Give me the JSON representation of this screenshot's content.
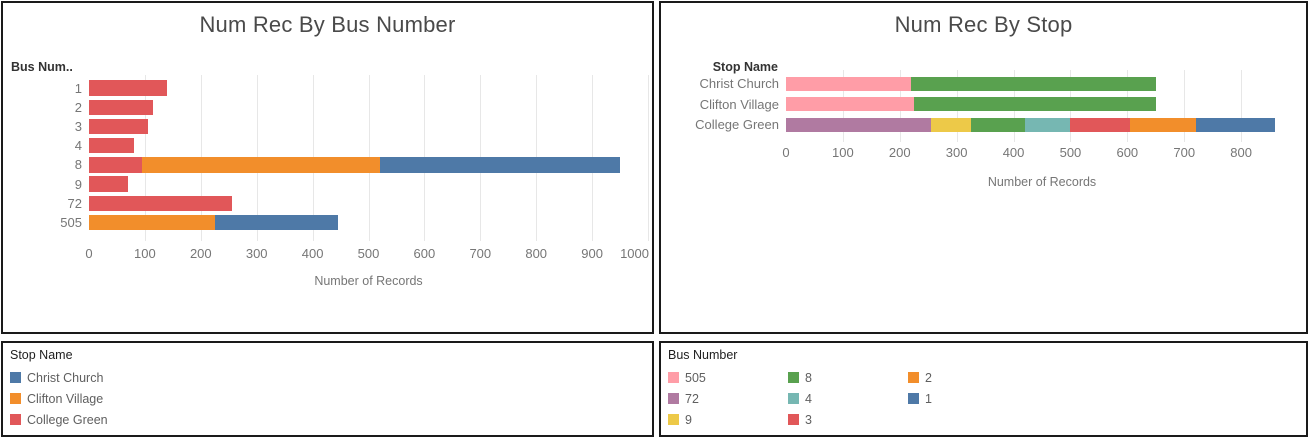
{
  "chart_data": [
    {
      "type": "bar",
      "orientation": "horizontal",
      "stacked": true,
      "title": "Num Rec By Bus Number",
      "row_header": "Bus Num..",
      "xlabel": "Number of Records",
      "xlim": [
        0,
        1000
      ],
      "xticks": [
        0,
        100,
        200,
        300,
        400,
        500,
        600,
        700,
        800,
        900,
        1000
      ],
      "grid": true,
      "legend_position": "separate-panel",
      "categories": [
        "1",
        "2",
        "3",
        "4",
        "8",
        "9",
        "72",
        "505"
      ],
      "series": [
        {
          "name": "College Green",
          "color": "#e15759",
          "values": [
            140,
            115,
            105,
            80,
            95,
            70,
            255,
            0
          ]
        },
        {
          "name": "Clifton Village",
          "color": "#f28e2b",
          "values": [
            0,
            0,
            0,
            0,
            425,
            0,
            0,
            225
          ]
        },
        {
          "name": "Christ Church",
          "color": "#4e79a7",
          "values": [
            0,
            0,
            0,
            0,
            430,
            0,
            0,
            220
          ]
        }
      ],
      "totals": [
        140,
        115,
        105,
        80,
        950,
        70,
        255,
        445
      ]
    },
    {
      "type": "bar",
      "orientation": "horizontal",
      "stacked": true,
      "title": "Num Rec By Stop",
      "row_header": "Stop Name",
      "xlabel": "Number of Records",
      "xlim": [
        0,
        900
      ],
      "xticks": [
        0,
        100,
        200,
        300,
        400,
        500,
        600,
        700,
        800
      ],
      "grid": true,
      "legend_position": "separate-panel",
      "categories": [
        "Christ Church",
        "Clifton Village",
        "College Green"
      ],
      "series": [
        {
          "name": "505",
          "color": "#ff9da7",
          "values": [
            220,
            225,
            0
          ]
        },
        {
          "name": "72",
          "color": "#b07aa1",
          "values": [
            0,
            0,
            255
          ]
        },
        {
          "name": "9",
          "color": "#edc948",
          "values": [
            0,
            0,
            70
          ]
        },
        {
          "name": "8",
          "color": "#59a14f",
          "values": [
            430,
            425,
            95
          ]
        },
        {
          "name": "4",
          "color": "#76b7b2",
          "values": [
            0,
            0,
            80
          ]
        },
        {
          "name": "3",
          "color": "#e15759",
          "values": [
            0,
            0,
            105
          ]
        },
        {
          "name": "2",
          "color": "#f28e2b",
          "values": [
            0,
            0,
            115
          ]
        },
        {
          "name": "1",
          "color": "#4e79a7",
          "values": [
            0,
            0,
            140
          ]
        }
      ],
      "totals": [
        650,
        650,
        860
      ]
    }
  ],
  "legends": [
    {
      "title": "Stop Name",
      "columns": 1,
      "items": [
        {
          "label": "Christ Church",
          "color": "#4e79a7"
        },
        {
          "label": "Clifton Village",
          "color": "#f28e2b"
        },
        {
          "label": "College Green",
          "color": "#e15759"
        }
      ]
    },
    {
      "title": "Bus Number",
      "columns": 3,
      "items": [
        {
          "label": "505",
          "color": "#ff9da7"
        },
        {
          "label": "72",
          "color": "#b07aa1"
        },
        {
          "label": "9",
          "color": "#edc948"
        },
        {
          "label": "8",
          "color": "#59a14f"
        },
        {
          "label": "4",
          "color": "#76b7b2"
        },
        {
          "label": "3",
          "color": "#e15759"
        },
        {
          "label": "2",
          "color": "#f28e2b"
        },
        {
          "label": "1",
          "color": "#4e79a7"
        }
      ]
    }
  ],
  "colors": {
    "accent_blue": "#4e79a7",
    "accent_orange": "#f28e2b",
    "accent_red": "#e15759",
    "accent_green": "#59a14f",
    "accent_teal": "#76b7b2",
    "accent_yellow": "#edc948",
    "accent_purple": "#b07aa1",
    "accent_pink": "#ff9da7",
    "gridline": "#e7e7e7",
    "panel_border": "#1a1a1a"
  }
}
